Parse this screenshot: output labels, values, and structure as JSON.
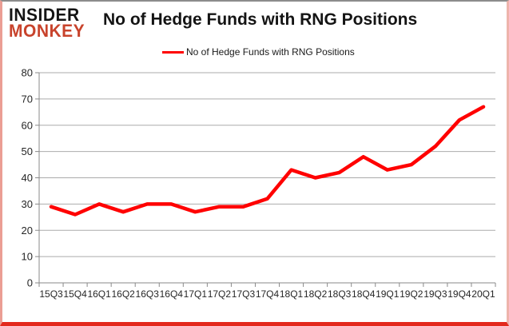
{
  "logo": {
    "line1": "INSIDER",
    "line2": "MONKEY"
  },
  "title": "No of Hedge Funds with RNG Positions",
  "legend": {
    "label": "No of Hedge Funds with RNG Positions",
    "swatch_color": "#ff0000"
  },
  "chart_data": {
    "type": "line",
    "title": "No of Hedge Funds with RNG Positions",
    "categories": [
      "15Q3",
      "15Q4",
      "16Q1",
      "16Q2",
      "16Q3",
      "16Q4",
      "17Q1",
      "17Q2",
      "17Q3",
      "17Q4",
      "18Q1",
      "18Q2",
      "18Q3",
      "18Q4",
      "19Q1",
      "19Q2",
      "19Q3",
      "19Q4",
      "20Q1"
    ],
    "series": [
      {
        "name": "No of Hedge Funds with RNG Positions",
        "color": "#ff0000",
        "values": [
          29,
          26,
          30,
          27,
          30,
          30,
          27,
          29,
          29,
          32,
          43,
          40,
          42,
          48,
          43,
          45,
          52,
          62,
          67
        ]
      }
    ],
    "xlabel": "",
    "ylabel": "",
    "ylim": [
      0,
      80
    ],
    "ytick_step": 10,
    "grid": true,
    "legend_position": "top-center",
    "colors": {
      "grid": "#ababab",
      "axis": "#8a8a8a",
      "tick_text": "#262626"
    }
  }
}
